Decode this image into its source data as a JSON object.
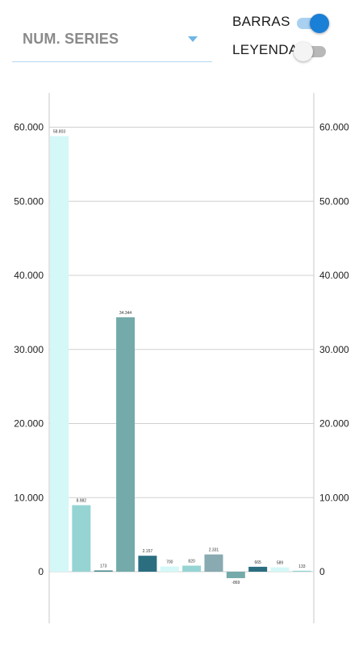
{
  "controls": {
    "series_select_label": "NUM. SERIES",
    "bars_label": "BARRAS",
    "bars_on": true,
    "legend_label": "LEYENDA",
    "legend_on": false
  },
  "colors": {
    "accent": "#1a7fd6",
    "grid": "#d0d0d0",
    "axis": "#c8c8c8"
  },
  "chart_data": {
    "type": "bar",
    "categories": [
      "",
      "",
      "",
      "",
      "",
      "",
      "",
      "",
      "",
      "",
      "",
      ""
    ],
    "values": [
      58803,
      8982,
      173,
      34344,
      2157,
      700,
      820,
      2331,
      -869,
      665,
      589,
      133
    ],
    "value_labels": [
      "58.803",
      "8.982",
      "173",
      "34.344",
      "2.157",
      "700",
      "820",
      "2.331",
      "-869",
      "665",
      "589",
      "133"
    ],
    "bar_colors": [
      "#d4f7f7",
      "#96d4d4",
      "#4d8a8e",
      "#74aaaa",
      "#2a6e80",
      "#d4f7f7",
      "#96d4d4",
      "#88aab0",
      "#74aaaa",
      "#2a6e80",
      "#d4f7f7",
      "#96d4d4"
    ],
    "left_ticks": [
      {
        "value": 60000,
        "label": "60.000"
      },
      {
        "value": 50000,
        "label": "50.000"
      },
      {
        "value": 40000,
        "label": "40.000"
      },
      {
        "value": 30000,
        "label": "30.000"
      },
      {
        "value": 20000,
        "label": "20.000"
      },
      {
        "value": 10000,
        "label": "10.000"
      },
      {
        "value": 0,
        "label": "0"
      }
    ],
    "right_ticks": [
      {
        "value": 60000,
        "label": "60.000"
      },
      {
        "value": 50000,
        "label": "50.000"
      },
      {
        "value": 40000,
        "label": "40.000"
      },
      {
        "value": 30000,
        "label": "30.000"
      },
      {
        "value": 20000,
        "label": "20.000"
      },
      {
        "value": 10000,
        "label": "10.000"
      },
      {
        "value": 0,
        "label": "0"
      }
    ],
    "ylim": [
      -6800,
      64500
    ],
    "grid": true,
    "legend": "none"
  }
}
